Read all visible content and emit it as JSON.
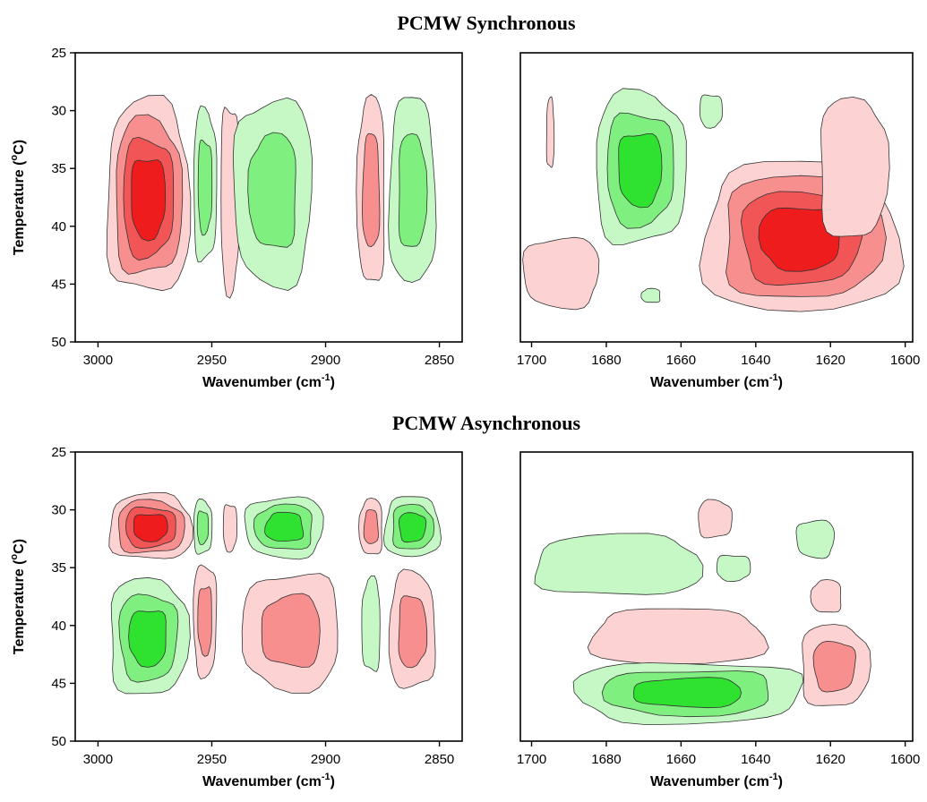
{
  "colors": {
    "red_levels": [
      "#fcd2d2",
      "#f78f8f",
      "#f25555",
      "#ee1c1c"
    ],
    "green_levels": [
      "#c5f8c5",
      "#7ff07f",
      "#2fe22f"
    ],
    "frame": "#000000"
  },
  "chart_data": [
    {
      "type": "heatmap",
      "section_title": "PCMW Synchronous",
      "panel": "top-left",
      "xlabel": "Wavenumber (cm-1)",
      "ylabel": "Temperature (oC)",
      "xlim": [
        3010,
        2840
      ],
      "ylim": [
        25,
        50
      ],
      "x_ticks": [
        3000,
        2950,
        2900,
        2850
      ],
      "y_ticks": [
        25,
        30,
        35,
        40,
        45,
        50
      ],
      "blobs": [
        {
          "sign": "positive",
          "cx": 2978,
          "cy": 37.5,
          "rx": 18,
          "ry": 8.3,
          "levels": 4
        },
        {
          "sign": "negative",
          "cx": 2953,
          "cy": 36.5,
          "rx": 5,
          "ry": 6.5,
          "levels": 2
        },
        {
          "sign": "positive",
          "cx": 2942,
          "cy": 37.5,
          "rx": 4,
          "ry": 8,
          "levels": 1
        },
        {
          "sign": "negative",
          "cx": 2923,
          "cy": 37,
          "rx": 17,
          "ry": 8,
          "levels": 2
        },
        {
          "sign": "positive",
          "cx": 2880,
          "cy": 37,
          "rx": 6,
          "ry": 8,
          "levels": 2
        },
        {
          "sign": "negative",
          "cx": 2862,
          "cy": 37,
          "rx": 10,
          "ry": 8,
          "levels": 2
        }
      ]
    },
    {
      "type": "heatmap",
      "section_title": "PCMW Synchronous",
      "panel": "top-right",
      "xlabel": "Wavenumber (cm-1)",
      "ylabel": "",
      "xlim": [
        1703,
        1598
      ],
      "ylim": [
        25,
        50
      ],
      "x_ticks": [
        1700,
        1680,
        1660,
        1640,
        1620,
        1600
      ],
      "y_ticks": [],
      "blobs": [
        {
          "sign": "positive",
          "cx": 1695,
          "cy": 32,
          "rx": 1,
          "ry": 3,
          "levels": 1
        },
        {
          "sign": "negative",
          "cx": 1671,
          "cy": 35,
          "rx": 12,
          "ry": 6.5,
          "levels": 3
        },
        {
          "sign": "negative",
          "cx": 1652,
          "cy": 30,
          "rx": 3,
          "ry": 1.4,
          "levels": 1
        },
        {
          "sign": "positive",
          "cx": 1692,
          "cy": 44,
          "rx": 10,
          "ry": 3,
          "levels": 1
        },
        {
          "sign": "negative",
          "cx": 1668,
          "cy": 46,
          "rx": 2.5,
          "ry": 0.6,
          "levels": 1
        },
        {
          "sign": "positive",
          "cx": 1628,
          "cy": 41,
          "rx": 26,
          "ry": 6.5,
          "levels": 4
        },
        {
          "sign": "positive",
          "cx": 1614,
          "cy": 35,
          "rx": 9,
          "ry": 6,
          "levels": 1
        }
      ]
    },
    {
      "type": "heatmap",
      "section_title": "PCMW Asynchronous",
      "panel": "bottom-left",
      "xlabel": "Wavenumber (cm-1)",
      "ylabel": "Temperature (oC)",
      "xlim": [
        3010,
        2840
      ],
      "ylim": [
        25,
        50
      ],
      "x_ticks": [
        3000,
        2950,
        2900,
        2850
      ],
      "y_ticks": [
        25,
        30,
        35,
        40,
        45,
        50
      ],
      "blobs": [
        {
          "sign": "positive",
          "cx": 2977,
          "cy": 31.5,
          "rx": 18,
          "ry": 2.8,
          "levels": 4
        },
        {
          "sign": "negative",
          "cx": 2954,
          "cy": 31.5,
          "rx": 4,
          "ry": 2.3,
          "levels": 2
        },
        {
          "sign": "positive",
          "cx": 2942,
          "cy": 31.5,
          "rx": 3,
          "ry": 2,
          "levels": 1
        },
        {
          "sign": "negative",
          "cx": 2918,
          "cy": 31.5,
          "rx": 17,
          "ry": 2.6,
          "levels": 3
        },
        {
          "sign": "positive",
          "cx": 2880,
          "cy": 31.5,
          "rx": 5,
          "ry": 2.4,
          "levels": 2
        },
        {
          "sign": "negative",
          "cx": 2862,
          "cy": 31.5,
          "rx": 12,
          "ry": 2.6,
          "levels": 3
        },
        {
          "sign": "negative",
          "cx": 2978,
          "cy": 41,
          "rx": 17,
          "ry": 5,
          "levels": 3
        },
        {
          "sign": "positive",
          "cx": 2953,
          "cy": 39.5,
          "rx": 5,
          "ry": 4.8,
          "levels": 2
        },
        {
          "sign": "positive",
          "cx": 2915,
          "cy": 40.5,
          "rx": 21,
          "ry": 5,
          "levels": 2
        },
        {
          "sign": "negative",
          "cx": 2880,
          "cy": 40,
          "rx": 4,
          "ry": 4,
          "levels": 1
        },
        {
          "sign": "positive",
          "cx": 2862,
          "cy": 40.5,
          "rx": 10,
          "ry": 5,
          "levels": 2
        }
      ]
    },
    {
      "type": "heatmap",
      "section_title": "PCMW Asynchronous",
      "panel": "bottom-right",
      "xlabel": "Wavenumber (cm-1)",
      "ylabel": "",
      "xlim": [
        1703,
        1598
      ],
      "ylim": [
        25,
        50
      ],
      "x_ticks": [
        1700,
        1680,
        1660,
        1640,
        1620,
        1600
      ],
      "y_ticks": [],
      "blobs": [
        {
          "sign": "negative",
          "cx": 1677,
          "cy": 34.8,
          "rx": 22,
          "ry": 2.6,
          "levels": 1
        },
        {
          "sign": "positive",
          "cx": 1651,
          "cy": 30.8,
          "rx": 4.5,
          "ry": 1.6,
          "levels": 1
        },
        {
          "sign": "negative",
          "cx": 1646,
          "cy": 35,
          "rx": 4.5,
          "ry": 1.1,
          "levels": 1
        },
        {
          "sign": "negative",
          "cx": 1624,
          "cy": 32.5,
          "rx": 5,
          "ry": 1.6,
          "levels": 1
        },
        {
          "sign": "positive",
          "cx": 1621,
          "cy": 37.5,
          "rx": 4,
          "ry": 1.4,
          "levels": 1
        },
        {
          "sign": "positive",
          "cx": 1661,
          "cy": 41,
          "rx": 23,
          "ry": 2.4,
          "levels": 1
        },
        {
          "sign": "positive",
          "cx": 1619,
          "cy": 43.5,
          "rx": 9,
          "ry": 3.5,
          "levels": 2
        },
        {
          "sign": "negative",
          "cx": 1658,
          "cy": 45.8,
          "rx": 30,
          "ry": 2.6,
          "levels": 3
        }
      ]
    }
  ]
}
